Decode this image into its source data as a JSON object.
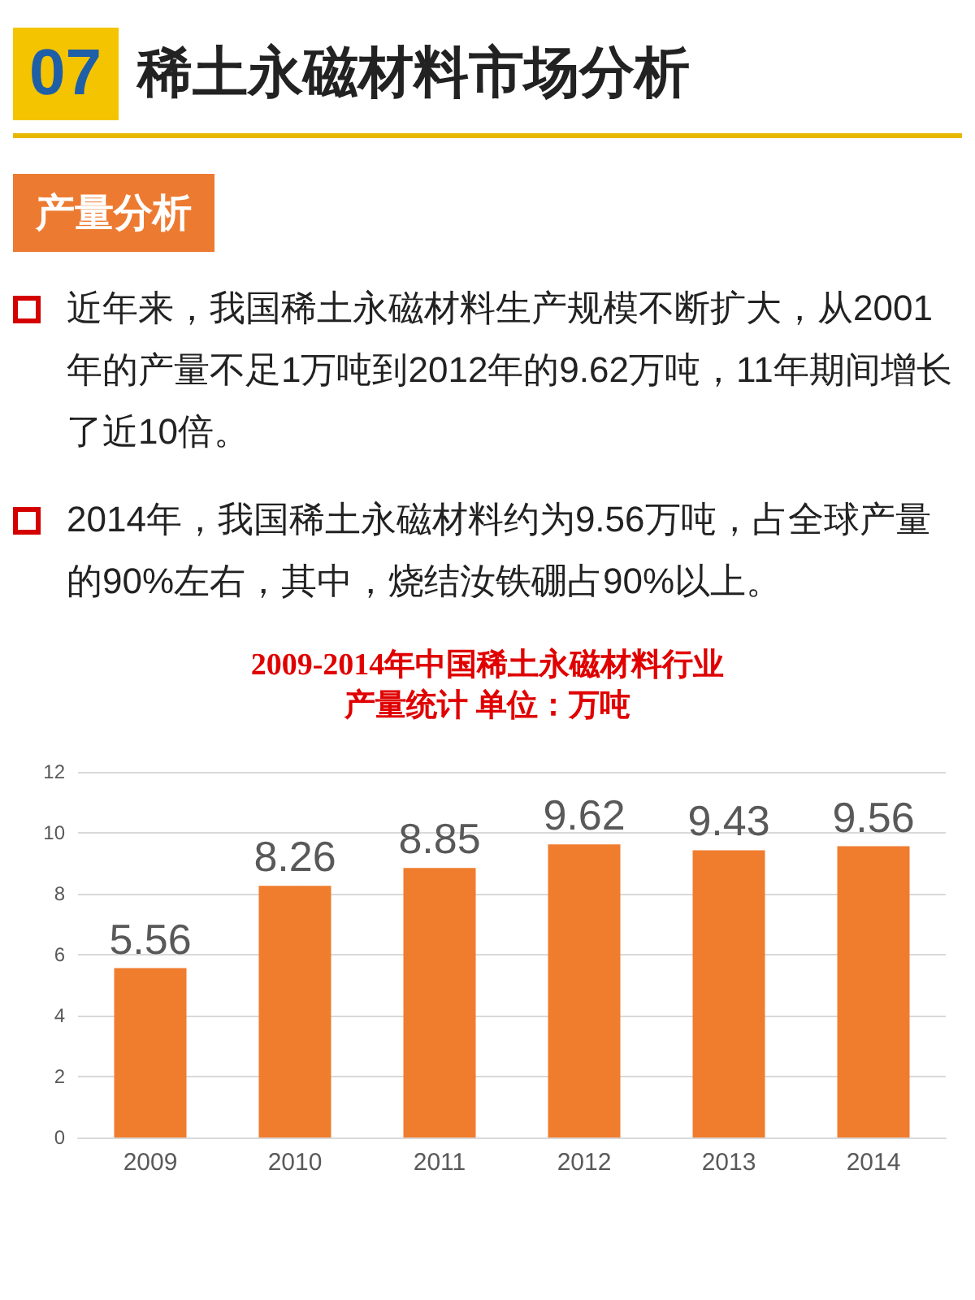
{
  "chart_data": {
    "type": "bar",
    "title": "2009-2014年中国稀土永磁材料行业",
    "subtitle": "产量统计 单位：万吨",
    "annotations": [
      "07",
      "稀土永磁材料市场分析",
      "产量分析",
      "近年来，我国稀土永磁材料生产规模不断扩大，从2001年的产量不足1万吨到2012年的9.62万吨，11年期间增长了近10倍。",
      "2014年，我国稀土永磁材料约为9.56万吨，占全球产量的90%左右，其中，烧结汝铁硼占90%以上。"
    ],
    "categories": [
      "2009",
      "2010",
      "2011",
      "2012",
      "2013",
      "2014"
    ],
    "values": [
      5.56,
      8.26,
      8.85,
      9.62,
      9.43,
      9.56
    ],
    "color": "#f07c2e",
    "ylim": [
      0,
      12
    ],
    "yticks": [
      0,
      2,
      4,
      6,
      8,
      10,
      12
    ],
    "grid": "y",
    "data_labels": true
  }
}
